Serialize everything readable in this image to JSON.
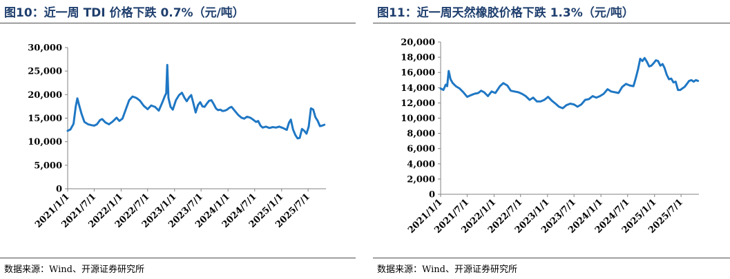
{
  "colors": {
    "series": "#1f77c4",
    "title": "#1f3f6e",
    "rule": "#4a4a4a"
  },
  "left": {
    "title": "图10：近一周 TDI 价格下跌 0.7%（元/吨）",
    "source": "数据来源：Wind、开源证券研究所",
    "chart_data": {
      "type": "line",
      "y_ticks": [
        "30,000",
        "25,000",
        "20,000",
        "15,000",
        "10,000",
        "5,000",
        "0"
      ],
      "x_ticks": [
        "2021/1/1",
        "2021/7/1",
        "2022/1/1",
        "2022/7/1",
        "2023/1/1",
        "2023/7/1",
        "2024/1/1",
        "2024/7/1",
        "2025/1/1",
        "2025/7/1"
      ],
      "ylim": [
        0,
        30000
      ],
      "xlim": [
        "2021-01-01",
        "2025-10-31"
      ],
      "grid": false,
      "series": [
        {
          "x": [
            "2021-01-01",
            "2021-01-20",
            "2021-02-10",
            "2021-02-25",
            "2021-03-08",
            "2021-03-20",
            "2021-04-05",
            "2021-04-25",
            "2021-05-20",
            "2021-06-15",
            "2021-07-01",
            "2021-07-20",
            "2021-08-10",
            "2021-08-25",
            "2021-09-15",
            "2021-10-10",
            "2021-11-05",
            "2021-12-01",
            "2021-12-20",
            "2022-01-10",
            "2022-02-01",
            "2022-02-25",
            "2022-03-20",
            "2022-04-15",
            "2022-05-10",
            "2022-06-05",
            "2022-07-01",
            "2022-07-25",
            "2022-08-20",
            "2022-09-15",
            "2022-10-10",
            "2022-10-25",
            "2022-11-05",
            "2022-11-12",
            "2022-11-20",
            "2022-12-05",
            "2022-12-20",
            "2023-01-10",
            "2023-02-01",
            "2023-02-20",
            "2023-03-10",
            "2023-03-25",
            "2023-04-10",
            "2023-04-25",
            "2023-05-10",
            "2023-05-25",
            "2023-06-10",
            "2023-06-25",
            "2023-07-10",
            "2023-07-25",
            "2023-08-10",
            "2023-08-25",
            "2023-09-10",
            "2023-09-25",
            "2023-10-10",
            "2023-10-25",
            "2023-11-10",
            "2023-11-25",
            "2023-12-10",
            "2023-12-25",
            "2024-01-10",
            "2024-01-25",
            "2024-02-15",
            "2024-03-10",
            "2024-04-01",
            "2024-04-20",
            "2024-05-10",
            "2024-06-01",
            "2024-06-20",
            "2024-07-10",
            "2024-07-25",
            "2024-08-10",
            "2024-08-25",
            "2024-09-15",
            "2024-10-10",
            "2024-11-01",
            "2024-11-25",
            "2024-12-15",
            "2025-01-10",
            "2025-02-05",
            "2025-02-20",
            "2025-03-05",
            "2025-03-20",
            "2025-04-05",
            "2025-04-20",
            "2025-05-05",
            "2025-05-20",
            "2025-06-05",
            "2025-06-20",
            "2025-07-05",
            "2025-07-20",
            "2025-08-05",
            "2025-08-20",
            "2025-09-05",
            "2025-09-20",
            "2025-10-05",
            "2025-10-20"
          ],
          "values": [
            12300,
            12600,
            13800,
            17500,
            19200,
            17800,
            16000,
            14200,
            13700,
            13500,
            13400,
            13700,
            14600,
            14800,
            14100,
            13700,
            14300,
            15100,
            14400,
            14900,
            16800,
            18800,
            19600,
            19300,
            18700,
            17600,
            16900,
            17700,
            17400,
            16600,
            18400,
            19600,
            20300,
            26300,
            19300,
            17400,
            16800,
            18800,
            19900,
            20400,
            19300,
            18600,
            19400,
            19900,
            18100,
            16200,
            17800,
            18400,
            17500,
            17400,
            18100,
            18700,
            18800,
            18000,
            17100,
            16700,
            16800,
            16500,
            16600,
            16800,
            17200,
            17400,
            16600,
            15700,
            15100,
            14900,
            15300,
            15100,
            14700,
            14200,
            14400,
            13400,
            13000,
            13200,
            12900,
            13100,
            13000,
            13200,
            12900,
            12500,
            14000,
            14700,
            12600,
            11400,
            10700,
            10800,
            12700,
            12300,
            11700,
            13200,
            17100,
            16800,
            15200,
            14400,
            13300,
            13400,
            13600
          ]
        }
      ]
    }
  },
  "right": {
    "title": "图11：近一周天然橡胶价格下跌 1.3%（元/吨）",
    "source": "数据来源：Wind、开源证券研究所",
    "chart_data": {
      "type": "line",
      "y_ticks": [
        "20,000",
        "18,000",
        "16,000",
        "14,000",
        "12,000",
        "10,000",
        "8,000",
        "6,000",
        "4,000",
        "2,000",
        "0"
      ],
      "x_ticks": [
        "2021/1/1",
        "2021/7/1",
        "2022/1/1",
        "2022/7/1",
        "2023/1/1",
        "2023/7/1",
        "2024/1/1",
        "2024/7/1",
        "2025/1/1",
        "2025/7/1"
      ],
      "ylim": [
        0,
        20000
      ],
      "xlim": [
        "2021-01-01",
        "2025-10-31"
      ],
      "grid": false,
      "series": [
        {
          "x": [
            "2021-01-01",
            "2021-01-20",
            "2021-02-05",
            "2021-02-15",
            "2021-02-25",
            "2021-03-10",
            "2021-03-25",
            "2021-04-15",
            "2021-05-10",
            "2021-06-05",
            "2021-07-01",
            "2021-07-25",
            "2021-08-20",
            "2021-09-15",
            "2021-10-05",
            "2021-10-25",
            "2021-11-20",
            "2021-12-15",
            "2022-01-10",
            "2022-02-10",
            "2022-03-05",
            "2022-04-01",
            "2022-04-25",
            "2022-05-20",
            "2022-06-15",
            "2022-07-10",
            "2022-08-05",
            "2022-09-01",
            "2022-09-25",
            "2022-10-20",
            "2022-11-15",
            "2022-12-10",
            "2023-01-05",
            "2023-01-30",
            "2023-02-25",
            "2023-03-20",
            "2023-04-15",
            "2023-05-10",
            "2023-06-05",
            "2023-07-01",
            "2023-07-25",
            "2023-08-20",
            "2023-09-15",
            "2023-10-10",
            "2023-11-05",
            "2023-11-30",
            "2023-12-25",
            "2024-01-20",
            "2024-02-15",
            "2024-03-10",
            "2024-04-05",
            "2024-04-30",
            "2024-05-25",
            "2024-06-20",
            "2024-07-15",
            "2024-08-10",
            "2024-08-25",
            "2024-09-10",
            "2024-09-25",
            "2024-10-10",
            "2024-10-25",
            "2024-11-10",
            "2024-11-25",
            "2024-12-10",
            "2024-12-25",
            "2025-01-10",
            "2025-01-25",
            "2025-02-10",
            "2025-02-25",
            "2025-03-10",
            "2025-03-25",
            "2025-04-10",
            "2025-04-25",
            "2025-05-10",
            "2025-05-25",
            "2025-06-10",
            "2025-06-25",
            "2025-07-10",
            "2025-07-25",
            "2025-08-10",
            "2025-08-25",
            "2025-09-10",
            "2025-09-25",
            "2025-10-10",
            "2025-10-25"
          ],
          "values": [
            13900,
            13700,
            14400,
            14200,
            16200,
            15100,
            14600,
            14200,
            13900,
            13400,
            12800,
            13000,
            13200,
            13300,
            13600,
            13400,
            12900,
            13500,
            13300,
            14200,
            14600,
            14300,
            13600,
            13500,
            13400,
            13200,
            12900,
            12400,
            12700,
            12200,
            12200,
            12400,
            12800,
            12300,
            11900,
            11500,
            11300,
            11700,
            11900,
            11800,
            11500,
            11800,
            12400,
            12500,
            12900,
            12700,
            12900,
            13200,
            13800,
            13500,
            13400,
            13300,
            14100,
            14500,
            14300,
            14200,
            15200,
            16400,
            17800,
            17500,
            17900,
            17400,
            16800,
            16900,
            17200,
            17600,
            17500,
            16900,
            17100,
            16600,
            15700,
            15100,
            15200,
            14700,
            14800,
            13700,
            13700,
            13900,
            14100,
            14500,
            14900,
            15000,
            14800,
            15000,
            14900
          ]
        }
      ]
    }
  }
}
